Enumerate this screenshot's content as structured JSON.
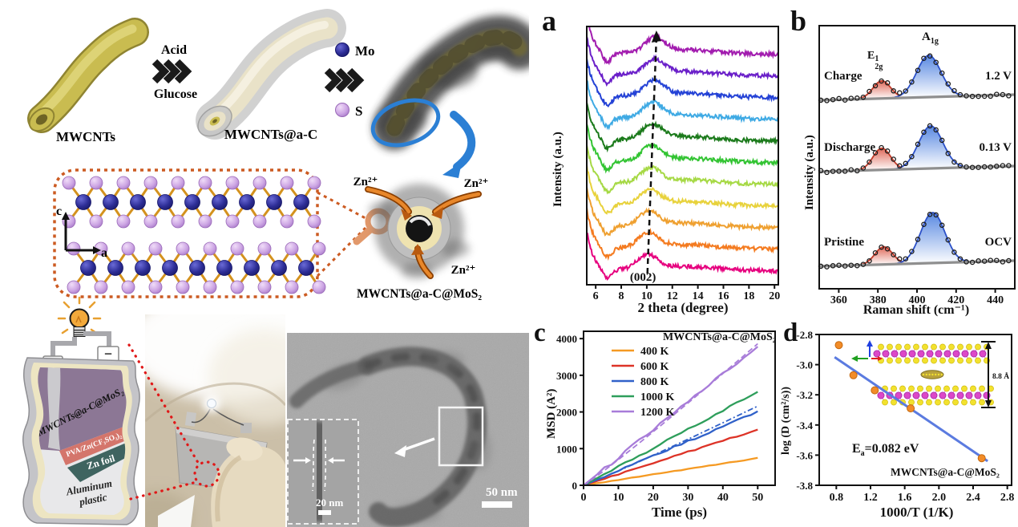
{
  "figure_type": "multi-panel materials science figure",
  "schematic": {
    "mwcnts": "MWCNTs",
    "acid": "Acid",
    "glucose": "Glucose",
    "mwcnts_ac": "MWCNTs@a-C",
    "mo": "Mo",
    "s": "S",
    "zn1": "Zn²⁺",
    "zn2": "Zn²⁺",
    "zn3": "Zn²⁺",
    "product": "MWCNTs@a-C@MoS₂",
    "axis_c": "c",
    "axis_a": "a"
  },
  "battery": {
    "electrode": "MWCNTs@a-C@MoS₂",
    "electrolyte": "PVA/Zn(CF₃SO₃)₂",
    "anode": "Zn foil",
    "casing_lines": [
      "Aluminum",
      "plastic"
    ],
    "plus": "+",
    "minus": "−"
  },
  "tem": {
    "scale_main": "50 nm",
    "scale_inset": "20 nm"
  },
  "chart_data": [
    {
      "id": "a",
      "panel_label": "a",
      "type": "line",
      "description": "Stacked in-situ XRD patterns; (002) peak near 10 degrees with dashed arrow guide showing peak shift",
      "xlabel": "2 theta (degree)",
      "ylabel": "Intensity (a.u.)",
      "xlim": [
        5.3,
        20.3
      ],
      "xticks": [
        6,
        8,
        10,
        12,
        14,
        16,
        18,
        20
      ],
      "xtick_labels": [
        "6",
        "8",
        "10",
        "12",
        "14",
        "16",
        "18",
        "20"
      ],
      "annotation": "(002)",
      "annotation_x": 9.7,
      "arrow": {
        "from_x": 10.05,
        "to_x": 10.75
      },
      "n_curves": 11,
      "peak_x_bottom": 10.05,
      "peak_x_step": 0.06,
      "curve_colors_bottom_to_top": [
        "#E6007E",
        "#F47B20",
        "#EFA030",
        "#E8D23C",
        "#A6D945",
        "#33C433",
        "#1B7A1B",
        "#3FAAE4",
        "#2442D6",
        "#6A1FC9",
        "#A21CAF"
      ]
    },
    {
      "id": "b",
      "panel_label": "b",
      "type": "line",
      "description": "Raman spectra with fitted E2g(1) ~382 cm-1 and A1g ~407 cm-1 peaks at three electrochemical states",
      "xlabel": "Raman shift (cm⁻¹)",
      "ylabel": "Intensity (a.u.)",
      "xlim": [
        350,
        450
      ],
      "xticks": [
        360,
        380,
        400,
        420,
        440
      ],
      "xtick_labels": [
        "360",
        "380",
        "400",
        "420",
        "440"
      ],
      "peak1": {
        "base": "E",
        "sup": "1",
        "sub": "2g"
      },
      "peak2": {
        "base": "A",
        "sub": "1g"
      },
      "colors": {
        "e2g_fill": "#D94F3D",
        "e2g_line": "#C23A28",
        "a1g_fill": "#3C74DC",
        "a1g_line": "#2B50C8",
        "data_points": "#1A1A1A",
        "baseline": "#8F8F8F"
      },
      "spectra": [
        {
          "name": "Charge",
          "tag": "1.2 V",
          "baseline_y": 123,
          "e2g_center": 382,
          "e2g_height": 22,
          "a1g_center": 406,
          "a1g_height": 52
        },
        {
          "name": "Discharge",
          "tag": "0.13 V",
          "baseline_y": 212,
          "e2g_center": 382,
          "e2g_height": 27,
          "a1g_center": 407,
          "a1g_height": 53
        },
        {
          "name": "Pristine",
          "tag": "OCV",
          "baseline_y": 330,
          "e2g_center": 383,
          "e2g_height": 22,
          "a1g_center": 408,
          "a1g_height": 63
        }
      ]
    },
    {
      "id": "c",
      "panel_label": "c",
      "type": "line",
      "title": "MWCNTs@a-C@MoS₂",
      "xlabel": "Time (ps)",
      "ylabel": "MSD (A²)",
      "xlim": [
        0,
        55
      ],
      "ylim": [
        0,
        4200
      ],
      "xticks": [
        0,
        10,
        20,
        30,
        40,
        50
      ],
      "xtick_labels": [
        "0",
        "10",
        "20",
        "30",
        "40",
        "50"
      ],
      "yticks": [
        0,
        1000,
        2000,
        3000,
        4000
      ],
      "ytick_labels": [
        "0",
        "1000",
        "2000",
        "3000",
        "4000"
      ],
      "series": [
        {
          "name": "400 K",
          "color": "#F59A23",
          "msd_at_50ps": 740
        },
        {
          "name": "600 K",
          "color": "#DD3327",
          "msd_at_50ps": 1520
        },
        {
          "name": "800 K",
          "color": "#3061C9",
          "msd_at_50ps": 2000,
          "fit_at_50ps": 2160
        },
        {
          "name": "1000 K",
          "color": "#2E9E5B",
          "msd_at_50ps": 2540
        },
        {
          "name": "1200 K",
          "color": "#A87CD9",
          "msd_at_50ps": 3790,
          "fit_at_50ps": 3860
        }
      ]
    },
    {
      "id": "d",
      "panel_label": "d",
      "type": "scatter",
      "description": "Arrhenius plot of Zn diffusion coefficient with linear fit and interlayer-spacing inset",
      "xlabel": "1000/T (1/K)",
      "ylabel": "log (D (cm²/s))",
      "xlim": [
        0.6,
        2.85
      ],
      "ylim": [
        -3.8,
        -2.8
      ],
      "xticks": [
        0.8,
        1.2,
        1.6,
        2.0,
        2.4,
        2.8
      ],
      "xtick_labels": [
        "0.8",
        "1.2",
        "1.6",
        "2.0",
        "2.4",
        "2.8"
      ],
      "yticks": [
        -2.8,
        -3.0,
        -3.2,
        -3.4,
        -3.6,
        -3.8
      ],
      "ytick_labels": [
        "-2.8",
        "-3.0",
        "-3.2",
        "-3.4",
        "-3.6",
        "-3.8"
      ],
      "points": [
        [
          0.83,
          -2.87
        ],
        [
          1.0,
          -3.07
        ],
        [
          1.25,
          -3.17
        ],
        [
          1.67,
          -3.29
        ],
        [
          2.5,
          -3.62
        ]
      ],
      "point_color": "#F28C28",
      "fit_line": {
        "x1": 0.78,
        "y1": -2.95,
        "x2": 2.57,
        "y2": -3.64,
        "color": "#5B7BE0"
      },
      "ea_label": {
        "base": "E",
        "sub": "a",
        "rest": "=0.082 eV"
      },
      "sample_label": "MWCNTs@a-C@MoS₂",
      "inset": {
        "spacing_label": "8.8 Å"
      }
    }
  ]
}
